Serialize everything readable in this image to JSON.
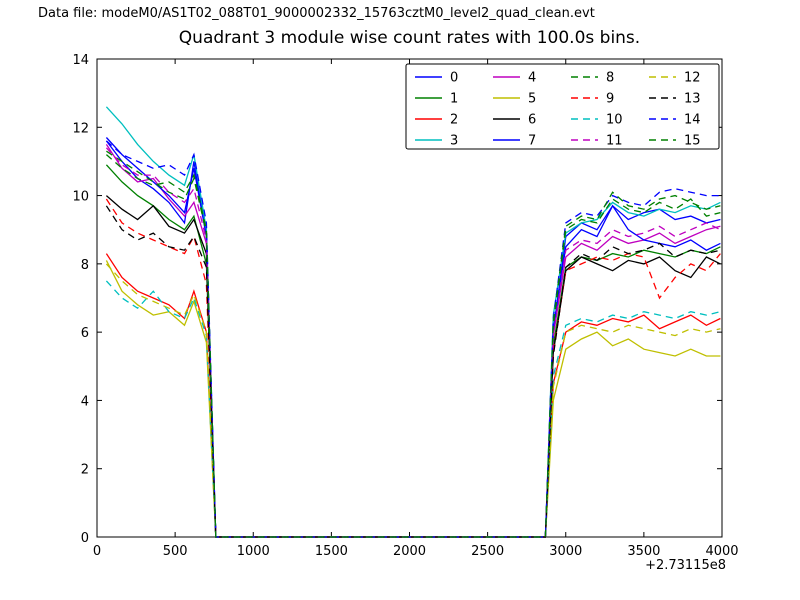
{
  "header": {
    "data_file_label": "Data file: modeM0/AS1T02_088T01_9000002332_15763cztM0_level2_quad_clean.evt"
  },
  "chart_data": {
    "type": "line",
    "title": "Quadrant 3 module wise count rates with 100.0s bins.",
    "xlabel": "",
    "ylabel": "",
    "x_offset_label": "+2.73115e8",
    "xlim": [
      0,
      4000
    ],
    "ylim": [
      0,
      14
    ],
    "xticks": [
      0,
      500,
      1000,
      1500,
      2000,
      2500,
      3000,
      3500,
      4000
    ],
    "yticks": [
      0,
      2,
      4,
      6,
      8,
      10,
      12,
      14
    ],
    "grid": false,
    "legend_position": "upper center",
    "legend_columns": 4,
    "x": [
      60,
      160,
      260,
      360,
      460,
      560,
      620,
      700,
      760,
      2870,
      2920,
      3000,
      3100,
      3200,
      3300,
      3400,
      3500,
      3600,
      3700,
      3800,
      3900,
      3990
    ],
    "series": [
      {
        "name": "0",
        "color": "#0000ff",
        "dashed": false,
        "values": [
          11.6,
          11.0,
          10.5,
          10.2,
          9.8,
          9.2,
          11.0,
          8.8,
          0,
          0,
          6.0,
          8.8,
          9.2,
          9.0,
          9.7,
          9.3,
          9.5,
          9.6,
          9.3,
          9.4,
          9.2,
          9.3
        ]
      },
      {
        "name": "1",
        "color": "#008000",
        "dashed": false,
        "values": [
          10.9,
          10.4,
          10.0,
          9.7,
          9.3,
          9.0,
          9.4,
          8.0,
          0,
          0,
          5.6,
          7.9,
          8.2,
          8.1,
          8.3,
          8.2,
          8.4,
          8.3,
          8.2,
          8.4,
          8.3,
          8.5
        ]
      },
      {
        "name": "2",
        "color": "#ff0000",
        "dashed": false,
        "values": [
          8.3,
          7.6,
          7.2,
          7.0,
          6.8,
          6.4,
          7.2,
          6.0,
          0,
          0,
          4.5,
          6.0,
          6.3,
          6.2,
          6.4,
          6.3,
          6.5,
          6.1,
          6.3,
          6.5,
          6.2,
          6.4
        ]
      },
      {
        "name": "3",
        "color": "#00bfbf",
        "dashed": false,
        "values": [
          12.6,
          12.1,
          11.5,
          11.0,
          10.6,
          10.3,
          11.2,
          9.0,
          0,
          0,
          6.5,
          8.9,
          9.2,
          9.3,
          9.8,
          9.5,
          9.4,
          9.6,
          9.5,
          9.7,
          9.6,
          9.8
        ]
      },
      {
        "name": "4",
        "color": "#bf00bf",
        "dashed": false,
        "values": [
          11.5,
          10.8,
          10.4,
          10.5,
          9.9,
          9.4,
          9.8,
          8.6,
          0,
          0,
          5.9,
          8.2,
          8.6,
          8.4,
          8.8,
          8.6,
          8.7,
          8.9,
          8.6,
          8.8,
          9.0,
          9.1
        ]
      },
      {
        "name": "5",
        "color": "#bfbf00",
        "dashed": false,
        "values": [
          8.1,
          7.2,
          6.8,
          6.5,
          6.6,
          6.2,
          6.9,
          5.7,
          0,
          0,
          4.0,
          5.5,
          5.8,
          6.0,
          5.6,
          5.8,
          5.5,
          5.4,
          5.3,
          5.5,
          5.3,
          5.3
        ]
      },
      {
        "name": "6",
        "color": "#000000",
        "dashed": false,
        "values": [
          10.0,
          9.6,
          9.3,
          9.7,
          9.1,
          8.9,
          9.3,
          8.3,
          0,
          0,
          5.4,
          7.8,
          8.2,
          8.0,
          7.8,
          8.1,
          8.0,
          8.2,
          7.8,
          7.6,
          8.2,
          8.0
        ]
      },
      {
        "name": "7",
        "color": "#0000ff",
        "dashed": false,
        "values": [
          11.7,
          11.2,
          10.8,
          10.4,
          10.0,
          9.5,
          10.8,
          8.8,
          0,
          0,
          6.1,
          8.5,
          9.0,
          8.8,
          9.7,
          9.0,
          8.7,
          8.6,
          8.5,
          8.7,
          8.4,
          8.6
        ]
      },
      {
        "name": "8",
        "color": "#008000",
        "dashed": true,
        "values": [
          11.3,
          11.0,
          10.7,
          10.4,
          10.1,
          9.9,
          10.5,
          8.9,
          0,
          0,
          6.2,
          9.0,
          9.3,
          9.2,
          9.9,
          9.6,
          9.5,
          9.8,
          9.6,
          9.9,
          9.4,
          9.5
        ]
      },
      {
        "name": "9",
        "color": "#ff0000",
        "dashed": true,
        "values": [
          9.9,
          9.2,
          8.9,
          8.7,
          8.5,
          8.3,
          8.8,
          7.4,
          0,
          0,
          5.4,
          7.8,
          8.0,
          8.2,
          8.1,
          8.3,
          8.2,
          7.0,
          7.6,
          8.0,
          7.8,
          8.3
        ]
      },
      {
        "name": "10",
        "color": "#00bfbf",
        "dashed": true,
        "values": [
          7.5,
          7.0,
          6.7,
          7.2,
          6.6,
          6.4,
          7.0,
          5.9,
          0,
          0,
          4.7,
          6.2,
          6.4,
          6.3,
          6.5,
          6.4,
          6.6,
          6.5,
          6.4,
          6.6,
          6.5,
          6.6
        ]
      },
      {
        "name": "11",
        "color": "#bf00bf",
        "dashed": true,
        "values": [
          11.4,
          10.9,
          10.6,
          10.6,
          10.1,
          9.8,
          10.2,
          8.7,
          0,
          0,
          5.9,
          8.4,
          8.7,
          8.6,
          9.0,
          8.8,
          8.9,
          9.1,
          8.8,
          9.0,
          9.2,
          9.0
        ]
      },
      {
        "name": "12",
        "color": "#bfbf00",
        "dashed": true,
        "values": [
          8.0,
          7.5,
          7.1,
          6.9,
          6.7,
          6.5,
          7.1,
          6.0,
          0,
          0,
          4.4,
          6.0,
          6.2,
          6.1,
          6.0,
          6.2,
          6.1,
          6.0,
          5.9,
          6.1,
          6.0,
          6.1
        ]
      },
      {
        "name": "13",
        "color": "#000000",
        "dashed": true,
        "values": [
          9.7,
          9.0,
          8.7,
          8.9,
          8.5,
          8.4,
          8.8,
          7.9,
          0,
          0,
          5.3,
          7.9,
          8.3,
          8.1,
          8.5,
          8.3,
          8.4,
          8.6,
          8.2,
          8.4,
          8.3,
          8.4
        ]
      },
      {
        "name": "14",
        "color": "#0000ff",
        "dashed": true,
        "values": [
          11.6,
          11.2,
          11.0,
          10.8,
          10.9,
          10.6,
          11.2,
          9.2,
          0,
          0,
          6.4,
          9.2,
          9.5,
          9.4,
          10.0,
          9.8,
          9.7,
          10.1,
          10.2,
          10.1,
          10.0,
          10.0
        ]
      },
      {
        "name": "15",
        "color": "#008000",
        "dashed": true,
        "values": [
          11.2,
          10.8,
          10.5,
          10.3,
          10.4,
          10.1,
          10.6,
          9.0,
          0,
          0,
          6.3,
          9.1,
          9.4,
          9.3,
          10.1,
          9.7,
          9.6,
          9.9,
          10.0,
          9.8,
          9.6,
          9.7
        ]
      }
    ]
  }
}
